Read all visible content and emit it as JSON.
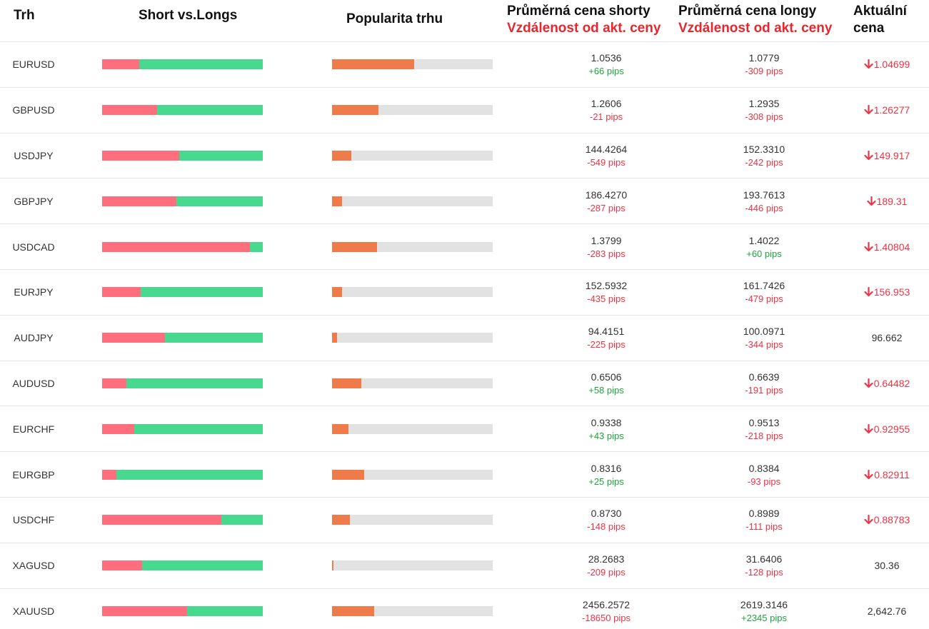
{
  "header": {
    "market": "Trh",
    "short_vs_longs": "Short vs.Longs",
    "popularity": "Popularita trhu",
    "avg_short": "Průměrná cena shorty",
    "avg_short_dist": "Vzdálenost od akt. ceny",
    "avg_long": "Průměrná cena longy",
    "avg_long_dist": "Vzdálenost od akt. ceny",
    "current_line1": "Aktuální",
    "current_line2": "cena"
  },
  "colors": {
    "short": "#fd6f7d",
    "long": "#48d98f",
    "popularity": "#f07b4a",
    "track": "#e2e2e2",
    "negative": "#ee3344",
    "positive": "#1fa33d"
  },
  "rows": [
    {
      "market": "EURUSD",
      "short_pct": 23,
      "popularity_pct": 51,
      "short_price": "1.0536",
      "short_pips": "+66 pips",
      "long_price": "1.0779",
      "long_pips": "-309 pips",
      "current": "1.04699",
      "trend": "down"
    },
    {
      "market": "GBPUSD",
      "short_pct": 34,
      "popularity_pct": 29,
      "short_price": "1.2606",
      "short_pips": "-21 pips",
      "long_price": "1.2935",
      "long_pips": "-308 pips",
      "current": "1.26277",
      "trend": "down"
    },
    {
      "market": "USDJPY",
      "short_pct": 48,
      "popularity_pct": 12,
      "short_price": "144.4264",
      "short_pips": "-549 pips",
      "long_price": "152.3310",
      "long_pips": "-242 pips",
      "current": "149.917",
      "trend": "down"
    },
    {
      "market": "GBPJPY",
      "short_pct": 46,
      "popularity_pct": 6,
      "short_price": "186.4270",
      "short_pips": "-287 pips",
      "long_price": "193.7613",
      "long_pips": "-446 pips",
      "current": "189.31",
      "trend": "down"
    },
    {
      "market": "USDCAD",
      "short_pct": 92,
      "popularity_pct": 28,
      "short_price": "1.3799",
      "short_pips": "-283 pips",
      "long_price": "1.4022",
      "long_pips": "+60 pips",
      "current": "1.40804",
      "trend": "down"
    },
    {
      "market": "EURJPY",
      "short_pct": 24,
      "popularity_pct": 6,
      "short_price": "152.5932",
      "short_pips": "-435 pips",
      "long_price": "161.7426",
      "long_pips": "-479 pips",
      "current": "156.953",
      "trend": "down"
    },
    {
      "market": "AUDJPY",
      "short_pct": 39,
      "popularity_pct": 3,
      "short_price": "94.4151",
      "short_pips": "-225 pips",
      "long_price": "100.0971",
      "long_pips": "-344 pips",
      "current": "96.662",
      "trend": "none"
    },
    {
      "market": "AUDUSD",
      "short_pct": 15,
      "popularity_pct": 18,
      "short_price": "0.6506",
      "short_pips": "+58 pips",
      "long_price": "0.6639",
      "long_pips": "-191 pips",
      "current": "0.64482",
      "trend": "down"
    },
    {
      "market": "EURCHF",
      "short_pct": 20,
      "popularity_pct": 10,
      "short_price": "0.9338",
      "short_pips": "+43 pips",
      "long_price": "0.9513",
      "long_pips": "-218 pips",
      "current": "0.92955",
      "trend": "down"
    },
    {
      "market": "EURGBP",
      "short_pct": 9,
      "popularity_pct": 20,
      "short_price": "0.8316",
      "short_pips": "+25 pips",
      "long_price": "0.8384",
      "long_pips": "-93 pips",
      "current": "0.82911",
      "trend": "down"
    },
    {
      "market": "USDCHF",
      "short_pct": 74,
      "popularity_pct": 11,
      "short_price": "0.8730",
      "short_pips": "-148 pips",
      "long_price": "0.8989",
      "long_pips": "-111 pips",
      "current": "0.88783",
      "trend": "down"
    },
    {
      "market": "XAGUSD",
      "short_pct": 25,
      "popularity_pct": 1,
      "short_price": "28.2683",
      "short_pips": "-209 pips",
      "long_price": "31.6406",
      "long_pips": "-128 pips",
      "current": "30.36",
      "trend": "none"
    },
    {
      "market": "XAUUSD",
      "short_pct": 53,
      "popularity_pct": 26,
      "short_price": "2456.2572",
      "short_pips": "-18650 pips",
      "long_price": "2619.3146",
      "long_pips": "+2345 pips",
      "current": "2,642.76",
      "trend": "none"
    }
  ]
}
